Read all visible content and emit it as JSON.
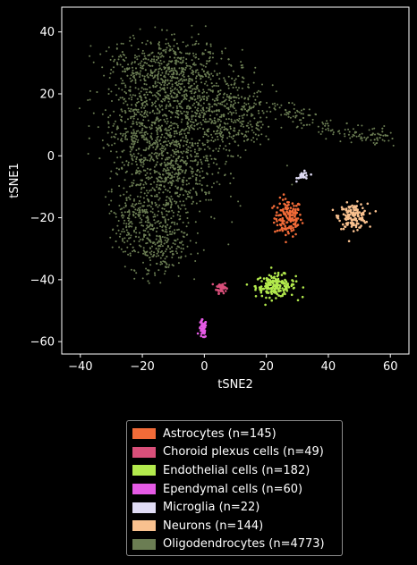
{
  "chart_data": {
    "type": "scatter",
    "xlabel": "tSNE2",
    "ylabel": "tSNE1",
    "xlim": [
      -46,
      66
    ],
    "ylim": [
      -64,
      48
    ],
    "xticks": [
      -40,
      -20,
      0,
      20,
      40,
      60
    ],
    "yticks": [
      -60,
      -40,
      -20,
      0,
      20,
      40
    ],
    "legend_position": "below",
    "series": [
      {
        "name": "Astrocytes (n=145)",
        "color": "#f26b38",
        "count": 145,
        "cluster": {
          "center": [
            27,
            -20
          ],
          "spread": [
            2.2,
            3
          ]
        }
      },
      {
        "name": "Choroid plexus cells (n=49)",
        "color": "#d94f7a",
        "count": 49,
        "cluster": {
          "center": [
            5.5,
            -42.5
          ],
          "spread": [
            0.8,
            0.9
          ]
        }
      },
      {
        "name": "Endothelial cells (n=182)",
        "color": "#b3ea4d",
        "count": 182,
        "cluster": {
          "center": [
            23,
            -42
          ],
          "spread": [
            3.2,
            1.8
          ]
        }
      },
      {
        "name": "Ependymal cells (n=60)",
        "color": "#e55ae5",
        "count": 60,
        "cluster": {
          "center": [
            -0.5,
            -56
          ],
          "spread": [
            0.6,
            1.5
          ]
        }
      },
      {
        "name": "Microglia (n=22)",
        "color": "#e0dcf5",
        "count": 22,
        "cluster": {
          "center": [
            32,
            -6.5
          ],
          "spread": [
            1,
            0.7
          ]
        }
      },
      {
        "name": "Neurons (n=144)",
        "color": "#f9c18f",
        "count": 144,
        "cluster": {
          "center": [
            48,
            -19.5
          ],
          "spread": [
            2.3,
            2
          ]
        }
      },
      {
        "name": "Oligodendrocytes (n=4773)",
        "color": "#6b7d53",
        "count": 4773,
        "cluster": {
          "center": [
            -12,
            10
          ],
          "spread": [
            14,
            20
          ]
        }
      }
    ]
  }
}
